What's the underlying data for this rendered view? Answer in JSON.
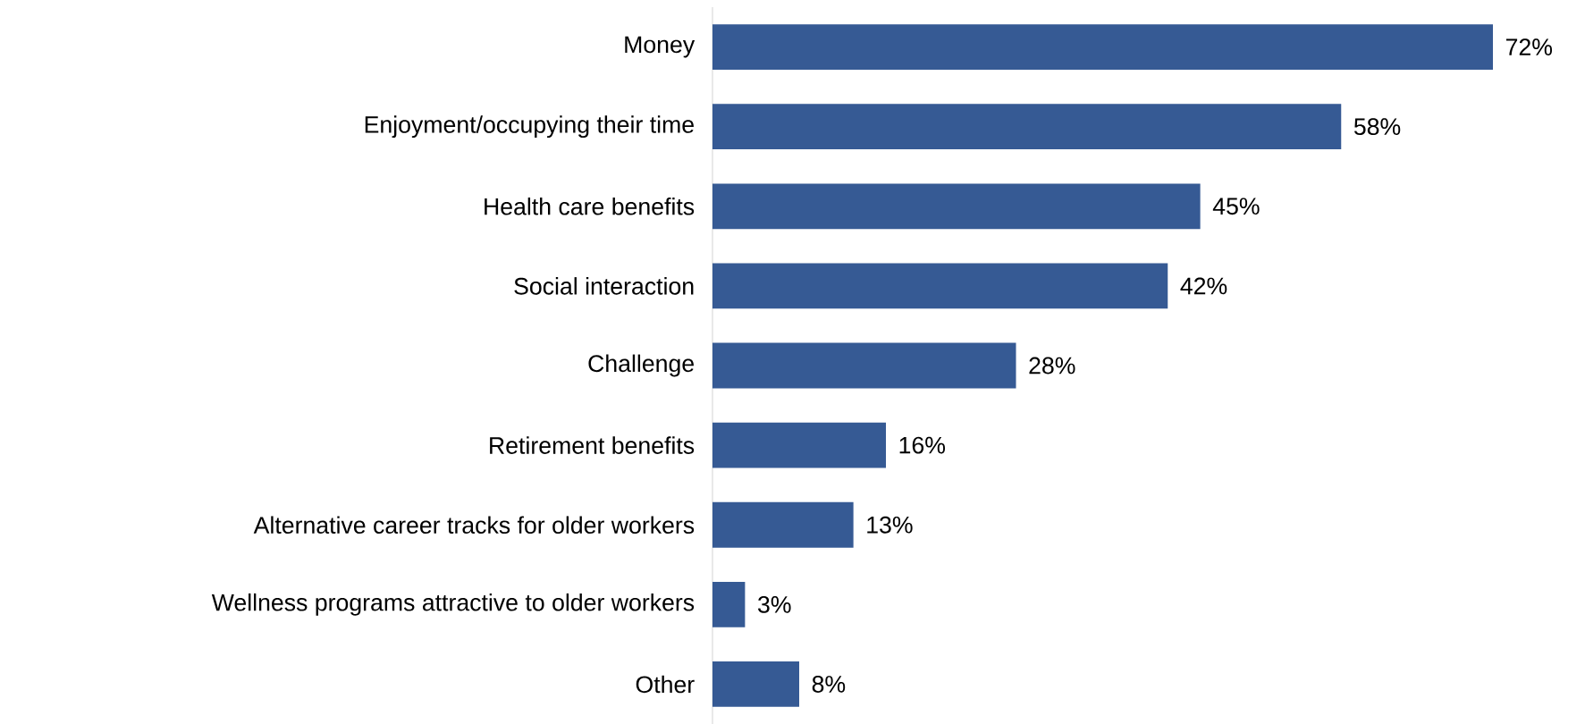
{
  "chart_data": {
    "type": "bar",
    "orientation": "horizontal",
    "categories": [
      "Money",
      "Enjoyment/occupying their time",
      "Health care benefits",
      "Social interaction",
      "Challenge",
      "Retirement benefits",
      "Alternative career tracks for older workers",
      "Wellness programs attractive to older workers",
      "Other"
    ],
    "values": [
      72,
      58,
      45,
      42,
      28,
      16,
      13,
      3,
      8
    ],
    "value_labels": [
      "72%",
      "58%",
      "45%",
      "42%",
      "28%",
      "16%",
      "13%",
      "3%",
      "8%"
    ],
    "color": "#365a94"
  }
}
